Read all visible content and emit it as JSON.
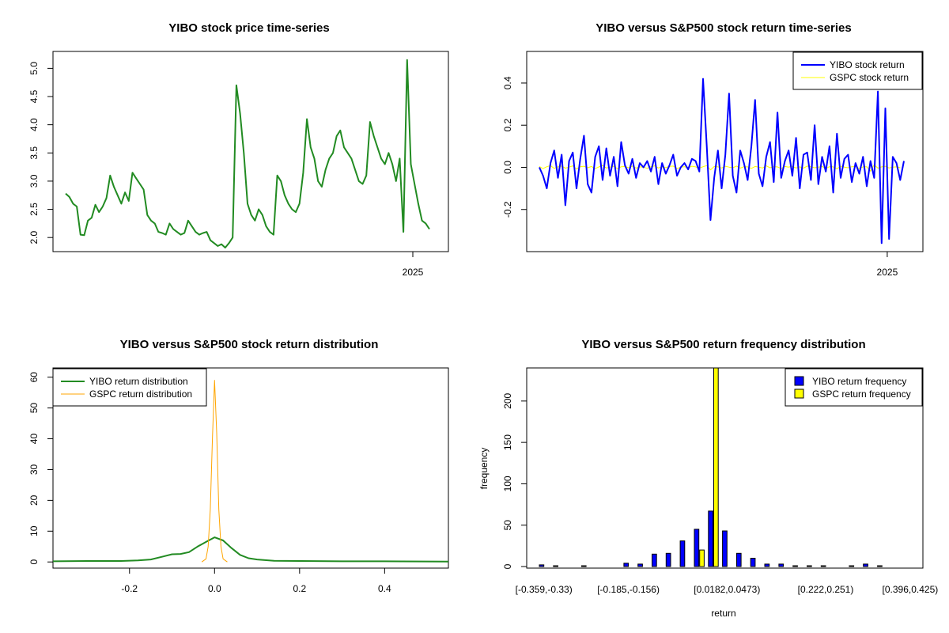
{
  "figure": {
    "background": "#ffffff"
  },
  "chart_data": [
    {
      "type": "line",
      "title": "YIBO stock price time-series",
      "xlabel": "",
      "ylabel": "",
      "x_tick_labels": [
        "2025"
      ],
      "x_tick_position": 0.91,
      "y_ticks": [
        2.0,
        2.5,
        3.0,
        3.5,
        4.0,
        4.5,
        5.0
      ],
      "y_tick_labels": [
        "2.0",
        "2.5",
        "3.0",
        "3.5",
        "4.0",
        "4.5",
        "5.0"
      ],
      "ylim": [
        1.75,
        5.3
      ],
      "color": "#228B22",
      "series": [
        {
          "name": "YIBO",
          "values": [
            2.78,
            2.72,
            2.6,
            2.55,
            2.05,
            2.04,
            2.3,
            2.35,
            2.58,
            2.45,
            2.55,
            2.7,
            3.1,
            2.9,
            2.75,
            2.6,
            2.8,
            2.65,
            3.15,
            3.05,
            2.95,
            2.85,
            2.4,
            2.3,
            2.25,
            2.1,
            2.08,
            2.05,
            2.25,
            2.15,
            2.1,
            2.05,
            2.08,
            2.3,
            2.2,
            2.1,
            2.05,
            2.08,
            2.1,
            1.95,
            1.9,
            1.85,
            1.88,
            1.82,
            1.9,
            2.0,
            4.7,
            4.2,
            3.5,
            2.6,
            2.4,
            2.3,
            2.5,
            2.4,
            2.2,
            2.1,
            2.05,
            3.1,
            3.0,
            2.75,
            2.6,
            2.5,
            2.45,
            2.6,
            3.15,
            4.1,
            3.6,
            3.4,
            3.0,
            2.9,
            3.2,
            3.4,
            3.5,
            3.8,
            3.9,
            3.6,
            3.5,
            3.4,
            3.2,
            3.0,
            2.95,
            3.1,
            4.05,
            3.8,
            3.6,
            3.4,
            3.3,
            3.5,
            3.3,
            3.0,
            3.4,
            2.1,
            5.15,
            3.3,
            2.95,
            2.6,
            2.3,
            2.25,
            2.15
          ]
        }
      ]
    },
    {
      "type": "line",
      "title": "YIBO versus S&P500 stock return time-series",
      "xlabel": "",
      "ylabel": "",
      "x_tick_labels": [
        "2025"
      ],
      "x_tick_position": 0.91,
      "y_ticks": [
        -0.2,
        0.0,
        0.2,
        0.4
      ],
      "y_tick_labels": [
        "-0.2",
        "0.0",
        "0.2",
        "0.4"
      ],
      "ylim": [
        -0.4,
        0.55
      ],
      "legend": [
        "YIBO stock return",
        "GSPC stock return"
      ],
      "legend_position": "top-right",
      "series": [
        {
          "name": "YIBO stock return",
          "color": "#0000FF",
          "values": [
            0.0,
            -0.04,
            -0.1,
            0.02,
            0.08,
            -0.05,
            0.06,
            -0.18,
            0.03,
            0.07,
            -0.1,
            0.04,
            0.15,
            -0.08,
            -0.12,
            0.05,
            0.1,
            -0.06,
            0.09,
            -0.04,
            0.05,
            -0.09,
            0.12,
            0.01,
            -0.03,
            0.04,
            -0.05,
            0.02,
            0.0,
            0.03,
            -0.02,
            0.05,
            -0.08,
            0.02,
            -0.03,
            0.01,
            0.06,
            -0.04,
            0.0,
            0.02,
            -0.01,
            0.04,
            0.03,
            -0.02,
            0.42,
            0.1,
            -0.25,
            -0.05,
            0.08,
            -0.1,
            0.06,
            0.35,
            -0.04,
            -0.12,
            0.08,
            0.02,
            -0.06,
            0.1,
            0.32,
            -0.03,
            -0.09,
            0.05,
            0.12,
            -0.07,
            0.26,
            -0.05,
            0.03,
            0.08,
            -0.04,
            0.14,
            -0.1,
            0.06,
            0.07,
            -0.06,
            0.2,
            -0.08,
            0.05,
            -0.02,
            0.1,
            -0.12,
            0.16,
            -0.05,
            0.04,
            0.06,
            -0.07,
            0.02,
            -0.03,
            0.05,
            -0.09,
            0.03,
            -0.05,
            0.36,
            -0.36,
            0.28,
            -0.34,
            0.05,
            0.02,
            -0.06,
            0.03
          ]
        },
        {
          "name": "GSPC stock return",
          "color": "#FFFF00",
          "values": [
            0.004,
            -0.006,
            0.003,
            0.008,
            -0.005,
            0.002,
            0.006,
            -0.004,
            0.001,
            0.007,
            -0.008,
            0.003,
            0.005,
            -0.002,
            0.004,
            -0.006,
            0.002,
            0.009,
            -0.003,
            0.001,
            0.005,
            -0.007,
            0.003,
            0.004,
            -0.002,
            0.006,
            -0.004,
            0.002,
            0.001,
            -0.005,
            0.003,
            0.007,
            -0.003,
            0.002,
            -0.001,
            0.004,
            0.006,
            -0.006,
            0.001,
            0.003,
            -0.002,
            0.005,
            0.002,
            -0.004,
            0.003,
            0.008,
            -0.012,
            0.004,
            0.002,
            -0.003,
            0.005,
            0.001,
            -0.002,
            0.006,
            -0.004,
            0.003,
            0.002,
            -0.005,
            0.004,
            0.001,
            -0.003,
            0.007,
            -0.002,
            0.003,
            0.002,
            -0.006,
            0.004,
            0.001,
            0.005,
            -0.003,
            0.002,
            -0.004,
            0.006,
            0.003,
            -0.002,
            0.001,
            0.004,
            -0.005,
            0.003,
            0.002,
            -0.007,
            0.005,
            0.001,
            -0.002,
            0.003,
            0.004,
            -0.006,
            0.002,
            0.003,
            -0.018,
            0.012,
            -0.004,
            0.002,
            0.005,
            -0.003,
            0.001,
            0.002,
            -0.002
          ]
        }
      ]
    },
    {
      "type": "line",
      "title": "YIBO versus S&P500 stock return distribution",
      "xlabel": "",
      "ylabel": "",
      "xlim": [
        -0.38,
        0.55
      ],
      "ylim": [
        -2,
        63
      ],
      "x_ticks": [
        -0.2,
        0.0,
        0.2,
        0.4
      ],
      "x_tick_labels": [
        "-0.2",
        "0.0",
        "0.2",
        "0.4"
      ],
      "y_ticks": [
        0,
        10,
        20,
        30,
        40,
        50,
        60
      ],
      "y_tick_labels": [
        "0",
        "10",
        "20",
        "30",
        "40",
        "50",
        "60"
      ],
      "legend": [
        "YIBO return distribution",
        "GSPC return distribution"
      ],
      "legend_position": "top-left",
      "series": [
        {
          "name": "YIBO return distribution",
          "color": "#228B22",
          "x": [
            -0.38,
            -0.3,
            -0.22,
            -0.18,
            -0.15,
            -0.12,
            -0.1,
            -0.08,
            -0.06,
            -0.04,
            -0.02,
            0.0,
            0.02,
            0.04,
            0.06,
            0.08,
            0.1,
            0.14,
            0.2,
            0.3,
            0.4,
            0.55
          ],
          "y": [
            0.2,
            0.3,
            0.3,
            0.5,
            0.8,
            1.8,
            2.5,
            2.6,
            3.2,
            5.0,
            6.5,
            8.0,
            7.0,
            4.5,
            2.3,
            1.2,
            0.8,
            0.4,
            0.3,
            0.2,
            0.2,
            0.1
          ]
        },
        {
          "name": "GSPC return distribution",
          "color": "#FFA500",
          "x": [
            -0.03,
            -0.02,
            -0.015,
            -0.01,
            -0.005,
            0.0,
            0.005,
            0.01,
            0.015,
            0.02,
            0.03
          ],
          "y": [
            0.0,
            1.0,
            5.0,
            17.0,
            40.0,
            59.0,
            42.0,
            17.0,
            5.0,
            1.0,
            0.0
          ]
        }
      ]
    },
    {
      "type": "bar",
      "title": "YIBO versus S&P500 return frequency distribution",
      "xlabel": "return",
      "ylabel": "frequency",
      "ylim": [
        0,
        240
      ],
      "y_ticks": [
        0,
        50,
        100,
        150,
        200
      ],
      "y_tick_labels": [
        "0",
        "50",
        "100",
        "150",
        "200"
      ],
      "shown_x_tick_labels": [
        "[-0.359,-0.33)",
        "[-0.185,-0.156)",
        "[0.0182,0.0473)",
        "[0.222,0.251)",
        "[0.396,0.425)"
      ],
      "shown_x_tick_bins": [
        0,
        6,
        13,
        20,
        26
      ],
      "legend": [
        "YIBO return frequency",
        "GSPC return frequency"
      ],
      "legend_position": "top-right",
      "bins": 27,
      "series": [
        {
          "name": "YIBO return frequency",
          "color": "#0000FF",
          "values": [
            2,
            1,
            0,
            1,
            0,
            0,
            4,
            3,
            15,
            16,
            31,
            45,
            67,
            43,
            16,
            10,
            3,
            3,
            1,
            1,
            1,
            0,
            1,
            3,
            1,
            0,
            0
          ]
        },
        {
          "name": "GSPC return frequency",
          "color": "#FFFF00",
          "values": [
            0,
            0,
            0,
            0,
            0,
            0,
            0,
            0,
            0,
            0,
            0,
            20,
            240,
            0,
            0,
            0,
            0,
            0,
            0,
            0,
            0,
            0,
            0,
            0,
            0,
            0,
            0
          ]
        }
      ]
    }
  ]
}
